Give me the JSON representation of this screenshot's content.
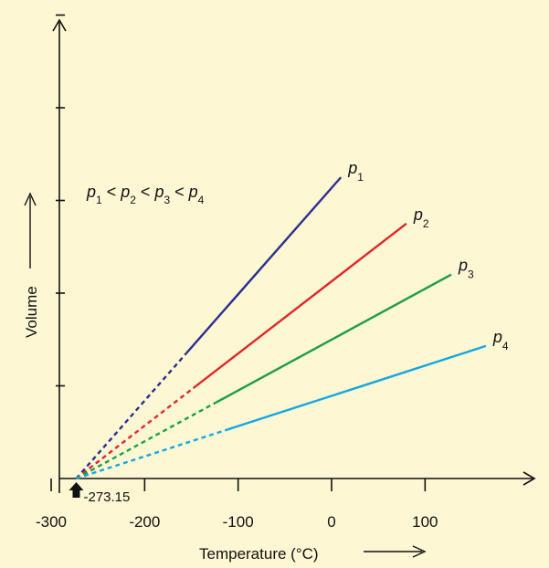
{
  "chart_data": {
    "type": "line",
    "xlabel": "Temperature (°C)",
    "ylabel": "Volume",
    "xlim": [
      -300,
      200
    ],
    "x_ticks": [
      "-300",
      "-200",
      "-100",
      "0",
      "100"
    ],
    "x_tick_values": [
      -300,
      -200,
      -100,
      0,
      100
    ],
    "y_tick_count": 5,
    "grid": false,
    "legend": "none",
    "relation_text": {
      "parts": [
        {
          "type": "var",
          "base": "p",
          "sub": "1"
        },
        {
          "type": "op",
          "text": " < "
        },
        {
          "type": "var",
          "base": "p",
          "sub": "2"
        },
        {
          "type": "op",
          "text": " < "
        },
        {
          "type": "var",
          "base": "p",
          "sub": "3"
        },
        {
          "type": "op",
          "text": " < "
        },
        {
          "type": "var",
          "base": "p",
          "sub": "4"
        }
      ]
    },
    "annotation": "-273.15",
    "origin_x": -273.15,
    "series": [
      {
        "name": "p1",
        "base": "p",
        "sub": "1",
        "color": "#2b2f8f",
        "x": [
          -273.15,
          10
        ],
        "y": [
          0,
          3.25
        ],
        "solid_from_x": -155
      },
      {
        "name": "p2",
        "base": "p",
        "sub": "2",
        "color": "#e0282a",
        "x": [
          -273.15,
          80
        ],
        "y": [
          0,
          2.75
        ],
        "solid_from_x": -148
      },
      {
        "name": "p3",
        "base": "p",
        "sub": "3",
        "color": "#1f9c48",
        "x": [
          -273.15,
          128
        ],
        "y": [
          0,
          2.2
        ],
        "solid_from_x": -124
      },
      {
        "name": "p4",
        "base": "p",
        "sub": "4",
        "color": "#14a7e2",
        "x": [
          -273.15,
          165
        ],
        "y": [
          0,
          1.43
        ],
        "solid_from_x": -113
      }
    ]
  }
}
